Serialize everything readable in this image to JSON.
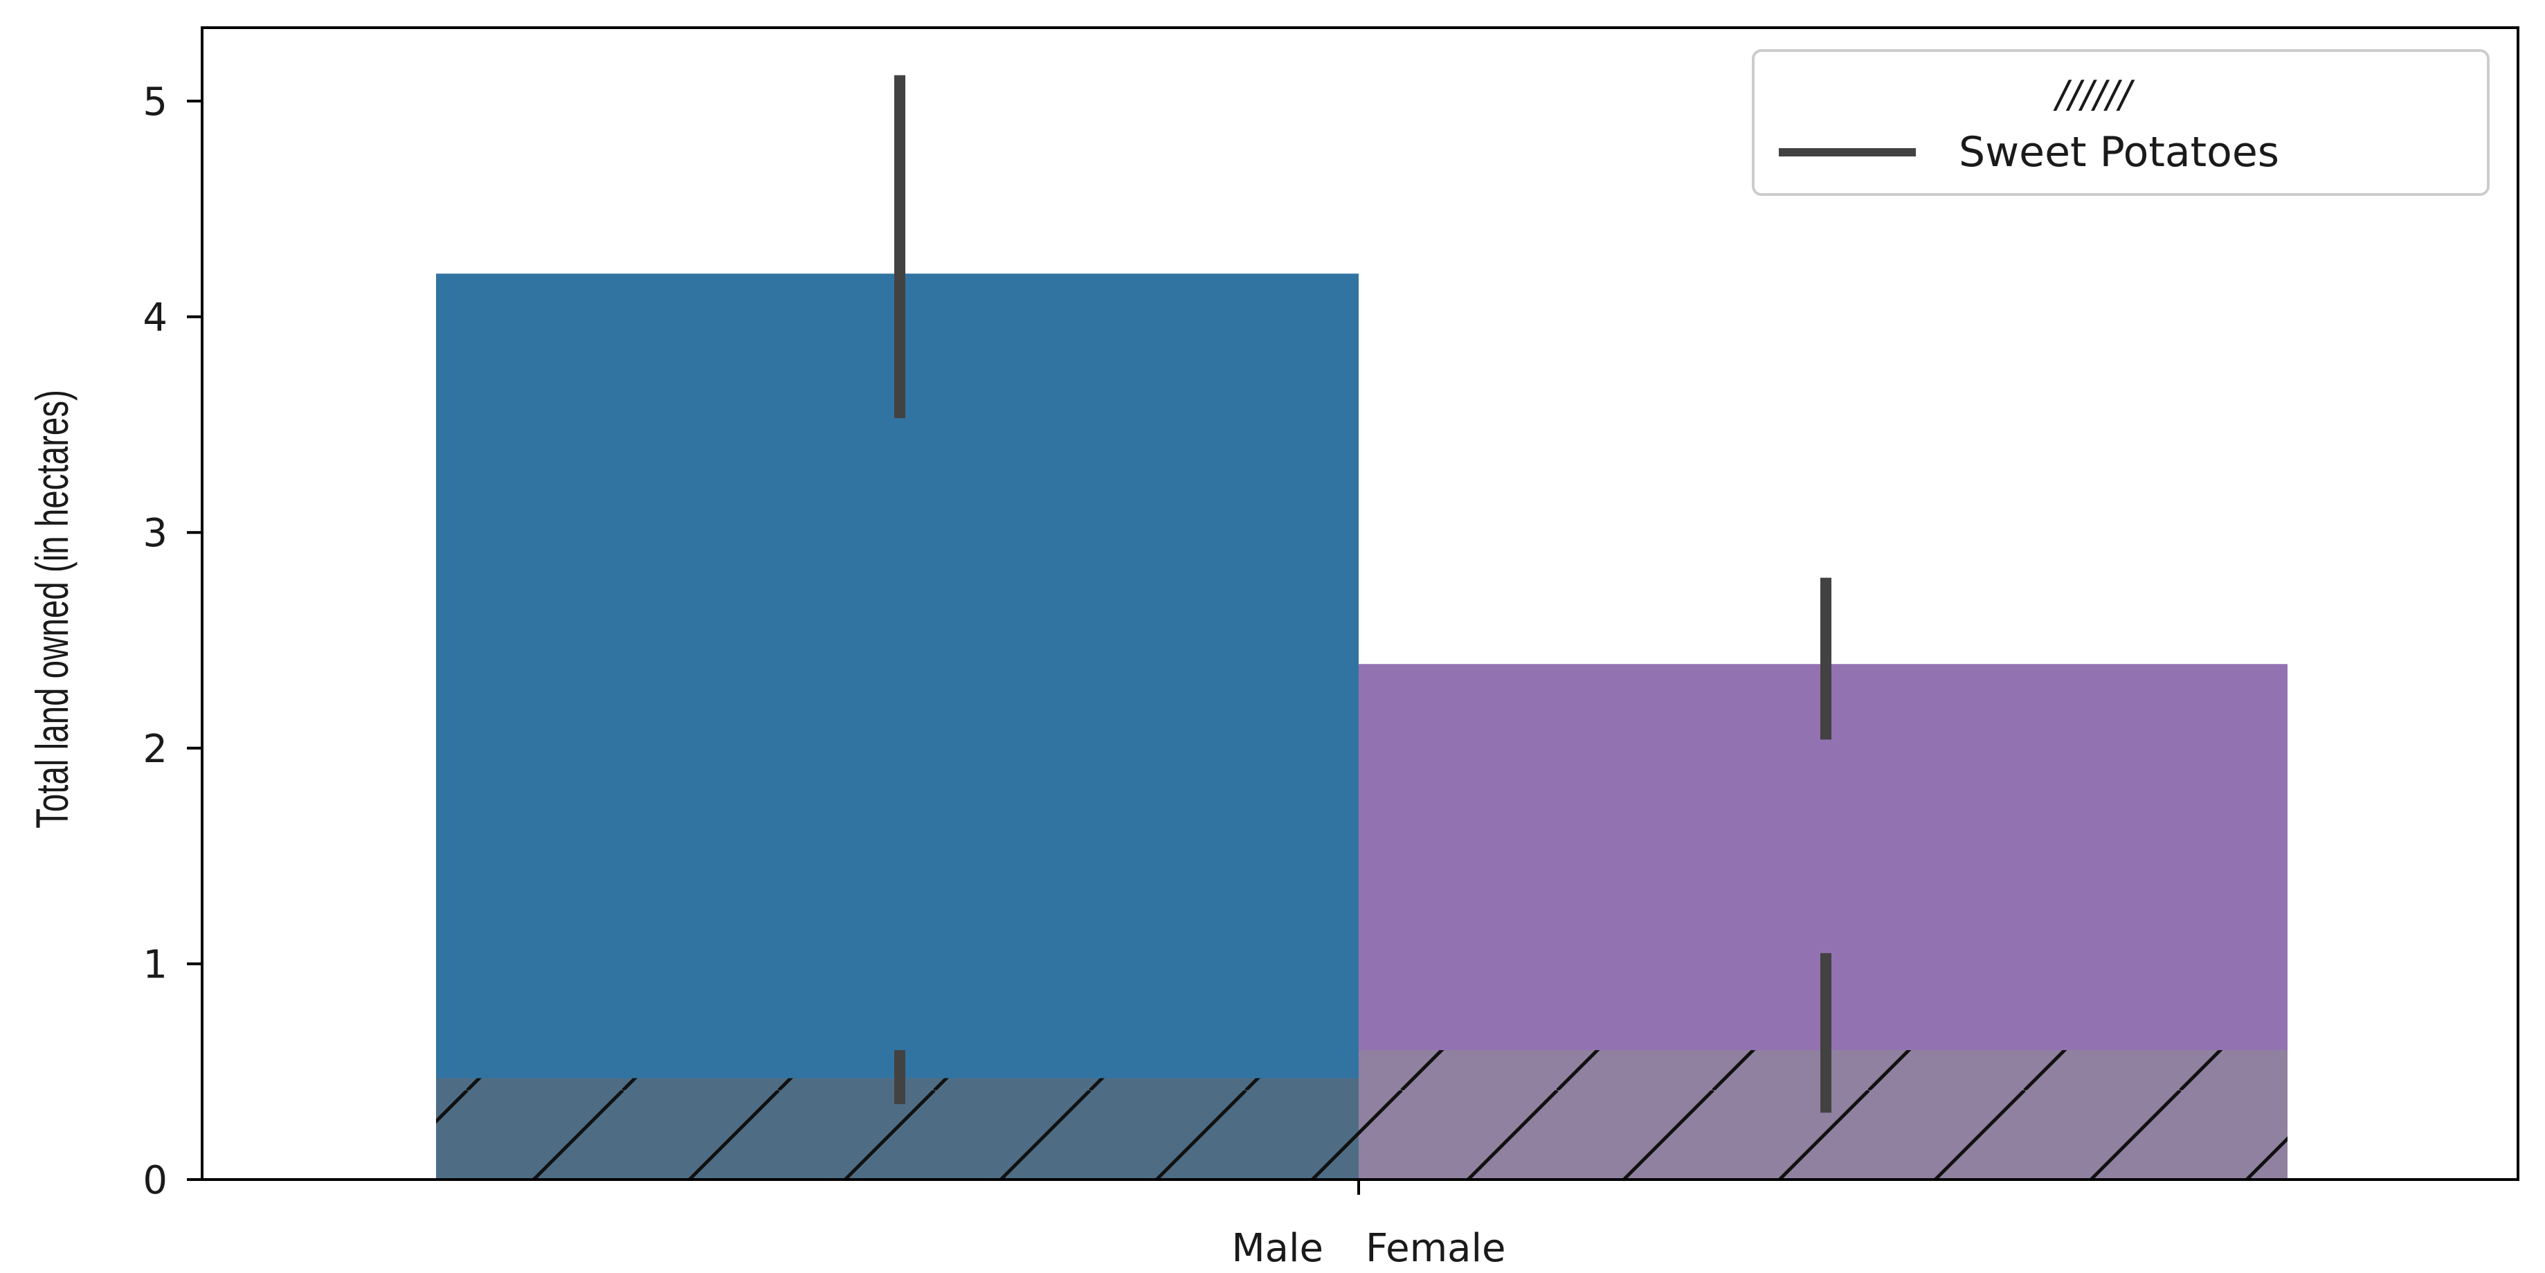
{
  "chart_data": {
    "type": "bar",
    "title": "",
    "xlabel": "",
    "ylabel": "Total land owned (in hectares)",
    "ylim": [
      0,
      5.35
    ],
    "yticks": [
      0,
      1,
      2,
      3,
      4,
      5
    ],
    "categories": [
      "Male",
      "Female"
    ],
    "grid": false,
    "series": [
      {
        "role": "total",
        "values": [
          4.2,
          2.39
        ],
        "error_bars": [
          [
            3.53,
            5.12
          ],
          [
            2.04,
            2.79
          ]
        ],
        "colors": [
          "#3274a1",
          "#9372b2"
        ]
      },
      {
        "role": "hatched",
        "name": "Sweet Potatoes",
        "hatch": "//////",
        "values": [
          0.47,
          0.6
        ],
        "error_bars": [
          [
            0.35,
            0.6
          ],
          [
            0.31,
            1.05
          ]
        ],
        "colors": [
          "#4e6d85",
          "#9181a0"
        ]
      }
    ],
    "error_bar_color": "#424242",
    "legend": {
      "position": "top-right",
      "entries": [
        {
          "marker": "hatch",
          "label": "//////"
        },
        {
          "marker": "line",
          "label": "Sweet Potatoes"
        }
      ]
    }
  }
}
